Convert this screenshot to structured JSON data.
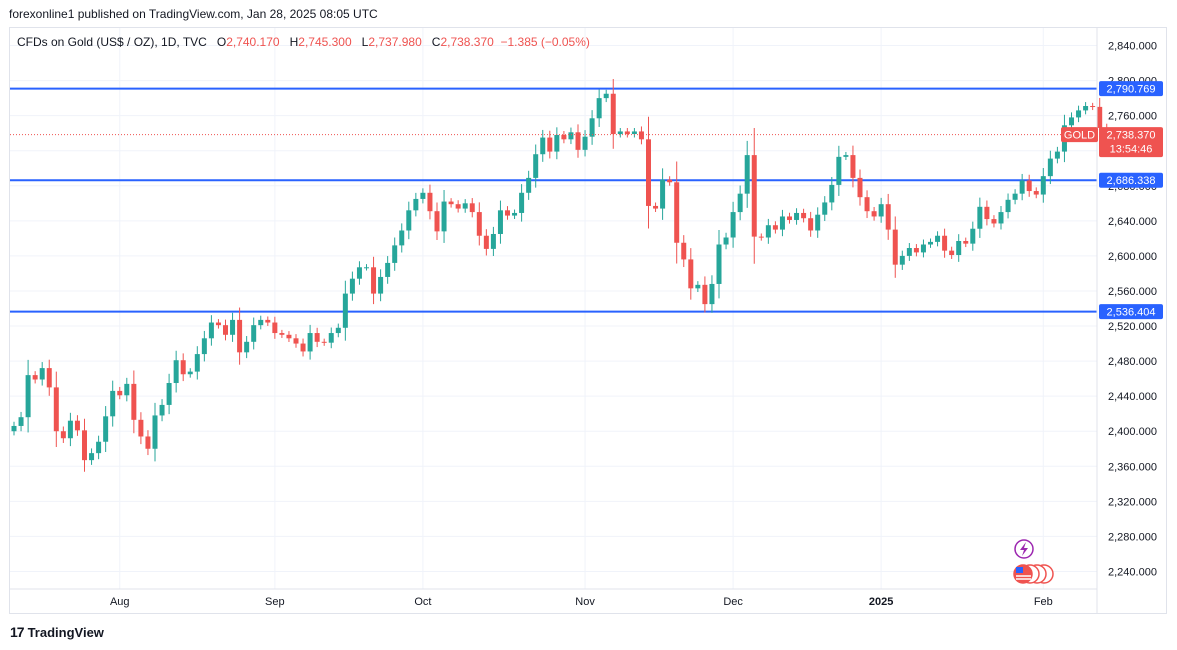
{
  "header": {
    "published_text": "forexonline1 published on TradingView.com, Jan 28, 2025 08:05 UTC"
  },
  "legend": {
    "symbol": "CFDs on Gold (US$ / OZ), 1D, TVC",
    "open_label": "O",
    "open": "2,740.170",
    "high_label": "H",
    "high": "2,745.300",
    "low_label": "L",
    "low": "2,737.980",
    "close_label": "C",
    "close": "2,738.370",
    "change": "−1.385 (−0.05%)"
  },
  "footer": {
    "logo_text": "TradingView"
  },
  "colors": {
    "up": "#26a69a",
    "down": "#ef5350",
    "level_line": "#2962ff",
    "grid": "#f0f3fa"
  },
  "chart_data": {
    "type": "candlestick",
    "ylim": [
      2220,
      2860
    ],
    "y_ticks": [
      "2,240.000",
      "2,280.000",
      "2,320.000",
      "2,360.000",
      "2,400.000",
      "2,440.000",
      "2,480.000",
      "2,520.000",
      "2,560.000",
      "2,600.000",
      "2,640.000",
      "2,680.000",
      "2,720.000",
      "2,760.000",
      "2,800.000",
      "2,840.000"
    ],
    "y_tick_values": [
      2240,
      2280,
      2320,
      2360,
      2400,
      2440,
      2480,
      2520,
      2560,
      2600,
      2640,
      2680,
      2720,
      2760,
      2800,
      2840
    ],
    "x_ticks": [
      {
        "label": "Aug",
        "index": 15
      },
      {
        "label": "Sep",
        "index": 37
      },
      {
        "label": "Oct",
        "index": 58
      },
      {
        "label": "Nov",
        "index": 81
      },
      {
        "label": "Dec",
        "index": 102
      },
      {
        "label": "2025",
        "index": 123
      },
      {
        "label": "Feb",
        "index": 146
      }
    ],
    "levels": [
      {
        "label": "2,790.769",
        "value": 2790.769
      },
      {
        "label": "2,686.338",
        "value": 2686.338
      },
      {
        "label": "2,536.404",
        "value": 2536.404
      }
    ],
    "last_price": {
      "symbol": "GOLD",
      "price": "2,738.370",
      "countdown": "13:54:46",
      "value": 2738.37
    },
    "closes": [
      2406,
      2416,
      2464,
      2459,
      2472,
      2450,
      2400,
      2392,
      2412,
      2401,
      2367,
      2375,
      2388,
      2417,
      2446,
      2441,
      2454,
      2413,
      2394,
      2380,
      2418,
      2430,
      2455,
      2481,
      2465,
      2468,
      2488,
      2506,
      2524,
      2521,
      2510,
      2527,
      2490,
      2502,
      2521,
      2527,
      2524,
      2512,
      2510,
      2506,
      2500,
      2491,
      2512,
      2502,
      2501,
      2512,
      2518,
      2557,
      2574,
      2587,
      2587,
      2557,
      2576,
      2592,
      2612,
      2629,
      2652,
      2665,
      2672,
      2651,
      2628,
      2662,
      2659,
      2654,
      2660,
      2650,
      2623,
      2608,
      2625,
      2652,
      2646,
      2649,
      2672,
      2689,
      2716,
      2735,
      2719,
      2738,
      2733,
      2741,
      2721,
      2736,
      2757,
      2780,
      2785,
      2739,
      2742,
      2739,
      2742,
      2733,
      2657,
      2654,
      2687,
      2684,
      2615,
      2596,
      2563,
      2567,
      2545,
      2568,
      2613,
      2621,
      2650,
      2671,
      2715,
      2622,
      2621,
      2635,
      2630,
      2645,
      2641,
      2649,
      2643,
      2629,
      2647,
      2661,
      2681,
      2713,
      2715,
      2689,
      2667,
      2651,
      2645,
      2659,
      2630,
      2590,
      2600,
      2609,
      2604,
      2613,
      2616,
      2623,
      2606,
      2601,
      2617,
      2614,
      2631,
      2656,
      2642,
      2637,
      2650,
      2664,
      2671,
      2686,
      2674,
      2670,
      2691,
      2711,
      2719,
      2749,
      2758,
      2766,
      2771,
      2770,
      2746,
      2740,
      2738
    ]
  }
}
